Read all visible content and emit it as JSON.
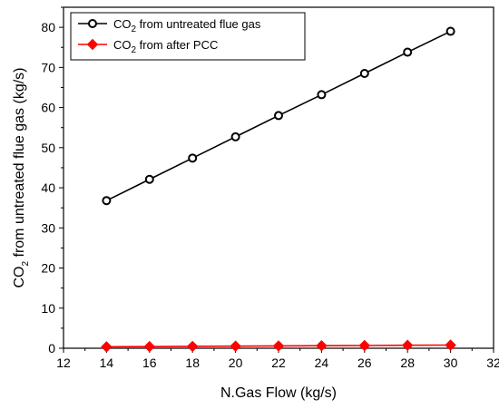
{
  "chart_data": {
    "type": "line",
    "xlabel": "N.Gas Flow (kg/s)",
    "ylabel": {
      "pre": "CO",
      "sub": "2",
      "post": " from untreated flue gas (kg/s)"
    },
    "xlim": [
      12,
      32
    ],
    "ylim": [
      0,
      85
    ],
    "xticks": [
      12,
      14,
      16,
      18,
      20,
      22,
      24,
      26,
      28,
      30,
      32
    ],
    "yticks": [
      0,
      10,
      20,
      30,
      40,
      50,
      60,
      70,
      80
    ],
    "grid": false,
    "legend_position": "top-left",
    "x": [
      14,
      16,
      18,
      20,
      22,
      24,
      26,
      28,
      30
    ],
    "series": [
      {
        "name": {
          "pre": "CO",
          "sub": "2",
          "post": " from untreated flue gas"
        },
        "color": "#000000",
        "marker": "circle-open",
        "values": [
          36.8,
          42.1,
          47.4,
          52.7,
          58.0,
          63.2,
          68.5,
          73.8,
          79.0
        ]
      },
      {
        "name": {
          "pre": "CO",
          "sub": "2",
          "post": " from after PCC"
        },
        "color": "#ff0000",
        "marker": "diamond-filled",
        "values": [
          0.37,
          0.42,
          0.47,
          0.53,
          0.58,
          0.63,
          0.68,
          0.74,
          0.79
        ]
      }
    ]
  }
}
